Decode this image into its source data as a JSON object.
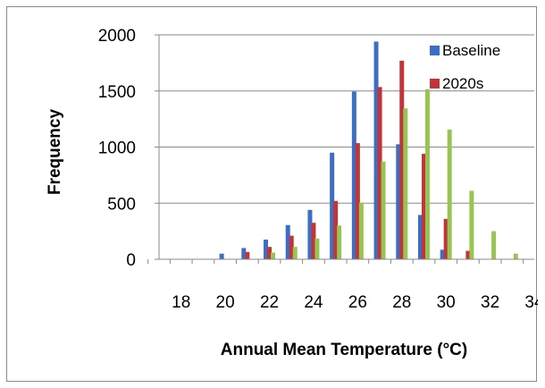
{
  "chart_data": {
    "type": "bar",
    "title": "",
    "xlabel": "Annual Mean Temperature (°C)",
    "ylabel": "Frequency",
    "ylim": [
      0,
      2000
    ],
    "yticks": [
      0,
      500,
      1000,
      1500,
      2000
    ],
    "xlim": [
      17,
      34
    ],
    "xticks": [
      18,
      20,
      22,
      24,
      26,
      28,
      30,
      32,
      34
    ],
    "grid": "horizontal",
    "legend": "top-right",
    "series": [
      {
        "name": "Baseline",
        "color": "#3a6fc4",
        "x": [
          20,
          21,
          22,
          23,
          24,
          25,
          26,
          27,
          28,
          29,
          30
        ],
        "values": [
          50,
          100,
          175,
          305,
          440,
          950,
          1495,
          1940,
          1025,
          395,
          85
        ]
      },
      {
        "name": "2020s",
        "color": "#c0353a",
        "x": [
          21,
          22,
          23,
          24,
          25,
          26,
          27,
          28,
          29,
          30,
          31
        ],
        "values": [
          65,
          110,
          210,
          325,
          520,
          1035,
          1535,
          1770,
          940,
          360,
          75
        ]
      },
      {
        "name": "",
        "color": "#98c453",
        "x": [
          22,
          23,
          24,
          25,
          26,
          27,
          28,
          29,
          30,
          31,
          32,
          33
        ],
        "values": [
          60,
          110,
          185,
          300,
          505,
          870,
          1345,
          1515,
          1155,
          610,
          250,
          50
        ]
      }
    ]
  }
}
